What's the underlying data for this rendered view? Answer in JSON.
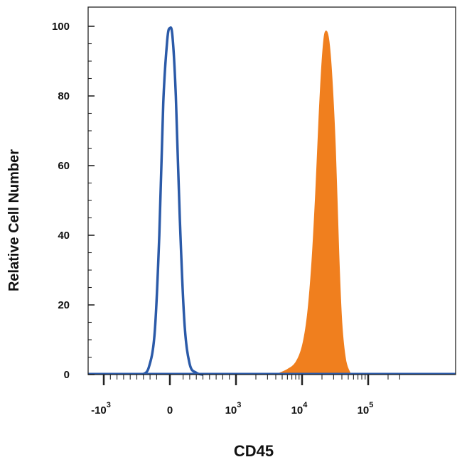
{
  "chart_data": {
    "type": "area",
    "title": "",
    "xlabel": "CD45",
    "ylabel": "Relative Cell Number",
    "x_scale": "biexponential",
    "ylim": [
      0,
      100
    ],
    "y_ticks": [
      0,
      20,
      40,
      60,
      80,
      100
    ],
    "x_ticks": [
      {
        "base": "-10",
        "exp": "3",
        "value": -1000
      },
      {
        "base": "0",
        "exp": "",
        "value": 0
      },
      {
        "base": "10",
        "exp": "3",
        "value": 1000
      },
      {
        "base": "10",
        "exp": "4",
        "value": 10000
      },
      {
        "base": "10",
        "exp": "5",
        "value": 100000
      }
    ],
    "grid": false,
    "legend": "none",
    "series": [
      {
        "style": "outline",
        "color": "#2b5aa8",
        "x": [
          -420,
          -320,
          -230,
          -160,
          -100,
          -40,
          0,
          40,
          90,
          150,
          220,
          300,
          400,
          500
        ],
        "y": [
          0,
          2,
          12,
          40,
          78,
          96,
          99.5,
          97,
          80,
          45,
          15,
          3,
          0.5,
          0
        ]
      },
      {
        "style": "filled",
        "color": "#f07f1e",
        "x": [
          4000,
          6000,
          8000,
          10000,
          12000,
          14000,
          16000,
          18000,
          20000,
          22000,
          25000,
          28000,
          32000,
          36000,
          40000,
          46000,
          55000
        ],
        "y": [
          0,
          1.5,
          3.5,
          8,
          17,
          32,
          52,
          74,
          90,
          98,
          97,
          87,
          65,
          35,
          15,
          4,
          0
        ]
      }
    ]
  }
}
